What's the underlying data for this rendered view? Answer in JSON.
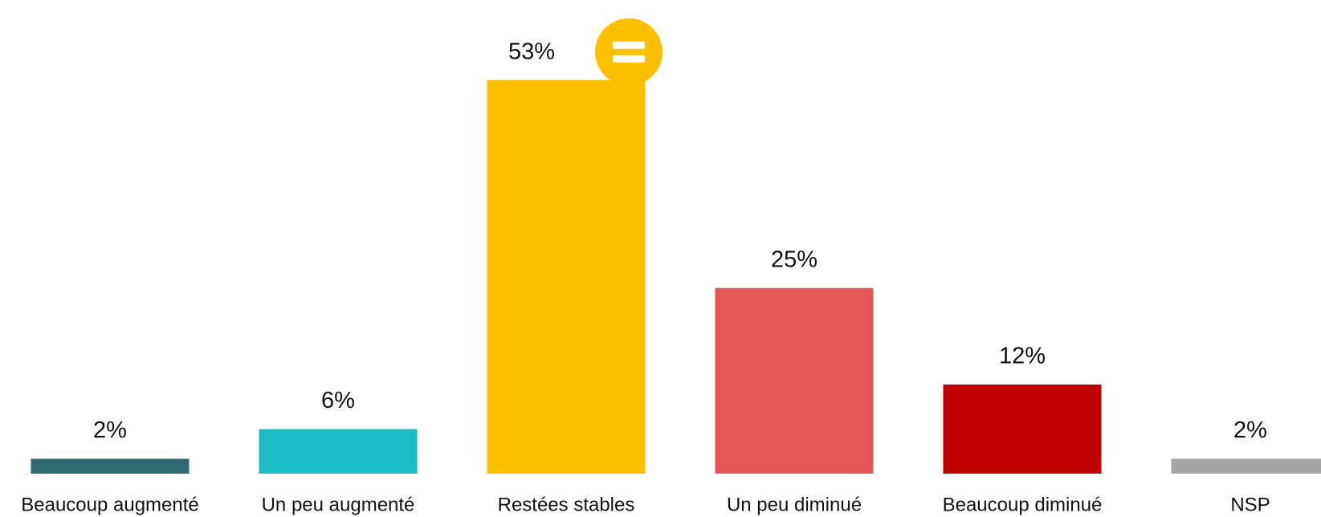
{
  "chart_data": {
    "type": "bar",
    "categories": [
      "Beaucoup augmenté",
      "Un peu augmenté",
      "Restées stables",
      "Un peu diminué",
      "Beaucoup diminué",
      "NSP"
    ],
    "values": [
      2,
      6,
      53,
      25,
      12,
      2
    ],
    "value_labels": [
      "2%",
      "6%",
      "53%",
      "25%",
      "12%",
      "2%"
    ],
    "colors": [
      "#2e6a70",
      "#1bbcc4",
      "#fdc000",
      "#e45757",
      "#c00000",
      "#a6a6a6"
    ],
    "ylim": [
      0,
      60
    ]
  }
}
